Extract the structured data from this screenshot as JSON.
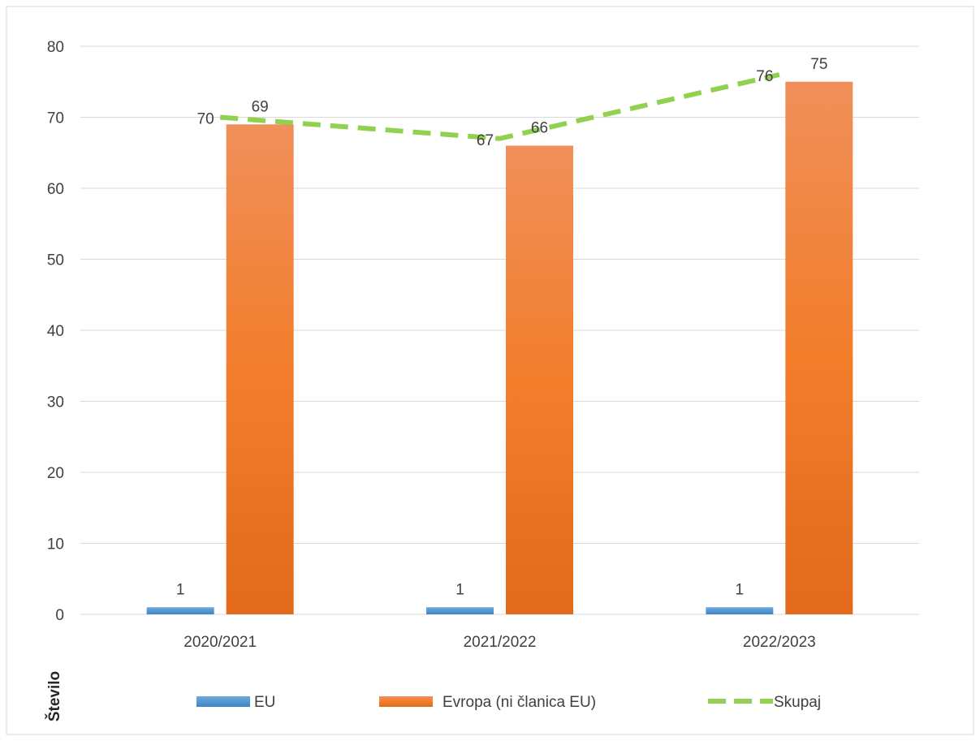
{
  "chart_data": {
    "type": "bar",
    "categories": [
      "2020/2021",
      "2021/2022",
      "2022/2023"
    ],
    "series": [
      {
        "name": "EU",
        "kind": "bar",
        "values": [
          1,
          1,
          1
        ],
        "labels": [
          "1",
          "1",
          "1"
        ],
        "color": "#5B9BD5"
      },
      {
        "name": "Evropa (ni članica EU)",
        "kind": "bar",
        "values": [
          69,
          66,
          75
        ],
        "labels": [
          "69",
          "66",
          "75"
        ],
        "color": "#ED7D31"
      },
      {
        "name": "Skupaj",
        "kind": "line",
        "style": "dashed",
        "values": [
          70,
          67,
          76
        ],
        "labels": [
          "70",
          "67",
          "76"
        ],
        "color": "#92D050"
      }
    ],
    "ylabel": "Število",
    "ylim": [
      0,
      80
    ],
    "yticks": [
      0,
      10,
      20,
      30,
      40,
      50,
      60,
      70,
      80
    ],
    "grid": true,
    "legend_position": "bottom"
  }
}
